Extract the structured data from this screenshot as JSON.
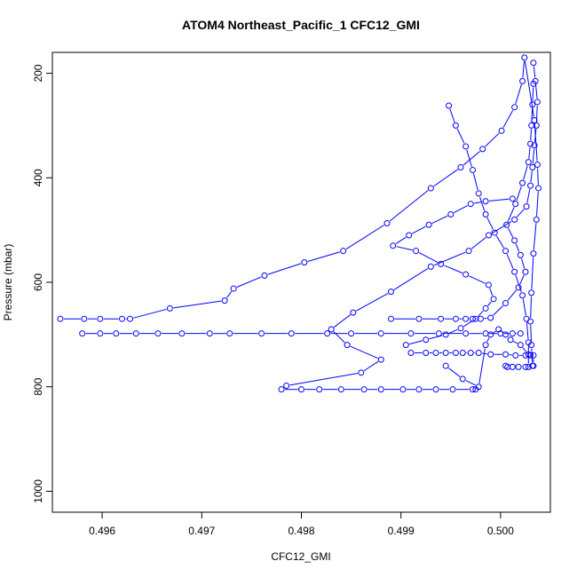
{
  "chart_data": {
    "type": "scatter",
    "title": "ATOM4 Northeast_Pacific_1 CFC12_GMI",
    "xlabel": "CFC12_GMI",
    "ylabel": "Pressure (mbar)",
    "xlim": [
      0.4955,
      0.5005
    ],
    "ylim": [
      1040,
      160
    ],
    "y_inverted": true,
    "x_ticks": [
      "0.496",
      "0.497",
      "0.498",
      "0.499",
      "0.500"
    ],
    "y_ticks": [
      "200",
      "400",
      "600",
      "800",
      "1000"
    ],
    "marker": "open-circle",
    "connect_points": true,
    "color": "#0000ff",
    "grid": false,
    "series": [
      {
        "values": [
          [
            0.49558,
            670
          ],
          [
            0.49582,
            670
          ],
          [
            0.49598,
            670
          ],
          [
            0.4962,
            670
          ],
          [
            0.49628,
            670
          ],
          [
            0.49668,
            650
          ],
          [
            0.49723,
            635
          ],
          [
            0.49732,
            612
          ],
          [
            0.49763,
            587
          ],
          [
            0.49803,
            562
          ],
          [
            0.49842,
            540
          ],
          [
            0.49886,
            487
          ],
          [
            0.4993,
            420
          ],
          [
            0.4996,
            380
          ],
          [
            0.49982,
            345
          ],
          [
            0.50001,
            310
          ],
          [
            0.50014,
            265
          ],
          [
            0.50022,
            215
          ],
          [
            0.50024,
            170
          ],
          [
            0.50034,
            290
          ],
          [
            0.50037,
            375
          ],
          [
            0.50038,
            420
          ],
          [
            0.50036,
            480
          ],
          [
            0.50033,
            545
          ],
          [
            0.50031,
            620
          ],
          [
            0.5003,
            675
          ],
          [
            0.50031,
            720
          ],
          [
            0.50032,
            760
          ]
        ]
      },
      {
        "values": [
          [
            0.4958,
            698
          ],
          [
            0.49598,
            698
          ],
          [
            0.49614,
            698
          ],
          [
            0.49634,
            698
          ],
          [
            0.49656,
            698
          ],
          [
            0.4968,
            698
          ],
          [
            0.49708,
            698
          ],
          [
            0.49728,
            698
          ],
          [
            0.4976,
            698
          ],
          [
            0.4979,
            698
          ],
          [
            0.49826,
            698
          ],
          [
            0.4985,
            698
          ],
          [
            0.4988,
            698
          ],
          [
            0.4991,
            698
          ],
          [
            0.49938,
            698
          ],
          [
            0.49965,
            698
          ],
          [
            0.49985,
            698
          ],
          [
            0.5,
            698
          ],
          [
            0.50012,
            698
          ],
          [
            0.5002,
            698
          ]
        ]
      },
      {
        "values": [
          [
            0.4978,
            805
          ],
          [
            0.498,
            805
          ],
          [
            0.49818,
            805
          ],
          [
            0.4984,
            805
          ],
          [
            0.49863,
            805
          ],
          [
            0.4988,
            805
          ],
          [
            0.49902,
            805
          ],
          [
            0.49918,
            805
          ],
          [
            0.49935,
            805
          ],
          [
            0.49952,
            805
          ],
          [
            0.49972,
            805
          ],
          [
            0.49975,
            805
          ]
        ]
      },
      {
        "values": [
          [
            0.49785,
            798
          ],
          [
            0.4986,
            773
          ],
          [
            0.4988,
            748
          ],
          [
            0.49846,
            720
          ],
          [
            0.4983,
            690
          ],
          [
            0.49852,
            658
          ],
          [
            0.4989,
            618
          ],
          [
            0.4993,
            570
          ],
          [
            0.49968,
            540
          ],
          [
            0.49988,
            510
          ],
          [
            0.50014,
            480
          ],
          [
            0.50026,
            455
          ],
          [
            0.5003,
            415
          ],
          [
            0.50032,
            380
          ],
          [
            0.50034,
            338
          ],
          [
            0.50036,
            300
          ],
          [
            0.50037,
            255
          ],
          [
            0.50035,
            215
          ],
          [
            0.50033,
            180
          ]
        ]
      },
      {
        "values": [
          [
            0.49948,
            262
          ],
          [
            0.49955,
            300
          ],
          [
            0.49965,
            340
          ],
          [
            0.49972,
            385
          ],
          [
            0.49978,
            430
          ],
          [
            0.49985,
            470
          ],
          [
            0.49994,
            505
          ],
          [
            0.50005,
            540
          ],
          [
            0.50014,
            580
          ],
          [
            0.50022,
            625
          ],
          [
            0.50026,
            670
          ],
          [
            0.50028,
            715
          ],
          [
            0.50028,
            762
          ]
        ]
      },
      {
        "values": [
          [
            0.4989,
            670
          ],
          [
            0.49918,
            670
          ],
          [
            0.4994,
            670
          ],
          [
            0.49955,
            670
          ],
          [
            0.49965,
            670
          ],
          [
            0.49972,
            670
          ],
          [
            0.4998,
            670
          ],
          [
            0.4999,
            668
          ],
          [
            0.50005,
            640
          ],
          [
            0.50018,
            610
          ],
          [
            0.50025,
            580
          ],
          [
            0.5002,
            548
          ],
          [
            0.50014,
            520
          ],
          [
            0.50006,
            490
          ],
          [
            0.50015,
            450
          ],
          [
            0.50022,
            410
          ],
          [
            0.50028,
            370
          ],
          [
            0.5003,
            335
          ],
          [
            0.50031,
            300
          ],
          [
            0.50032,
            260
          ],
          [
            0.50033,
            220
          ]
        ]
      },
      {
        "values": [
          [
            0.49905,
            720
          ],
          [
            0.49925,
            710
          ],
          [
            0.49945,
            700
          ],
          [
            0.4996,
            688
          ],
          [
            0.49975,
            670
          ],
          [
            0.49985,
            650
          ],
          [
            0.49993,
            632
          ],
          [
            0.49988,
            605
          ],
          [
            0.49965,
            585
          ],
          [
            0.4994,
            565
          ],
          [
            0.49915,
            540
          ],
          [
            0.49892,
            530
          ],
          [
            0.49908,
            510
          ],
          [
            0.49928,
            490
          ],
          [
            0.4995,
            470
          ],
          [
            0.4997,
            450
          ],
          [
            0.49985,
            445
          ],
          [
            0.50012,
            440
          ]
        ]
      },
      {
        "values": [
          [
            0.4991,
            735
          ],
          [
            0.49925,
            735
          ],
          [
            0.49935,
            735
          ],
          [
            0.49945,
            735
          ],
          [
            0.49955,
            735
          ],
          [
            0.49962,
            735
          ],
          [
            0.4997,
            735
          ],
          [
            0.49978,
            735
          ],
          [
            0.4999,
            738
          ],
          [
            0.50005,
            738
          ],
          [
            0.50015,
            740
          ],
          [
            0.50025,
            740
          ],
          [
            0.5003,
            740
          ],
          [
            0.50033,
            740
          ],
          [
            0.50033,
            760
          ],
          [
            0.50025,
            762
          ],
          [
            0.50018,
            762
          ],
          [
            0.50012,
            762
          ],
          [
            0.50007,
            762
          ],
          [
            0.50005,
            760
          ]
        ]
      },
      {
        "values": [
          [
            0.49945,
            760
          ],
          [
            0.49962,
            785
          ],
          [
            0.49978,
            800
          ],
          [
            0.49985,
            720
          ],
          [
            0.4999,
            700
          ],
          [
            0.49998,
            690
          ],
          [
            0.50005,
            700
          ],
          [
            0.5001,
            710
          ],
          [
            0.5002,
            720
          ],
          [
            0.50028,
            738
          ]
        ]
      }
    ]
  }
}
